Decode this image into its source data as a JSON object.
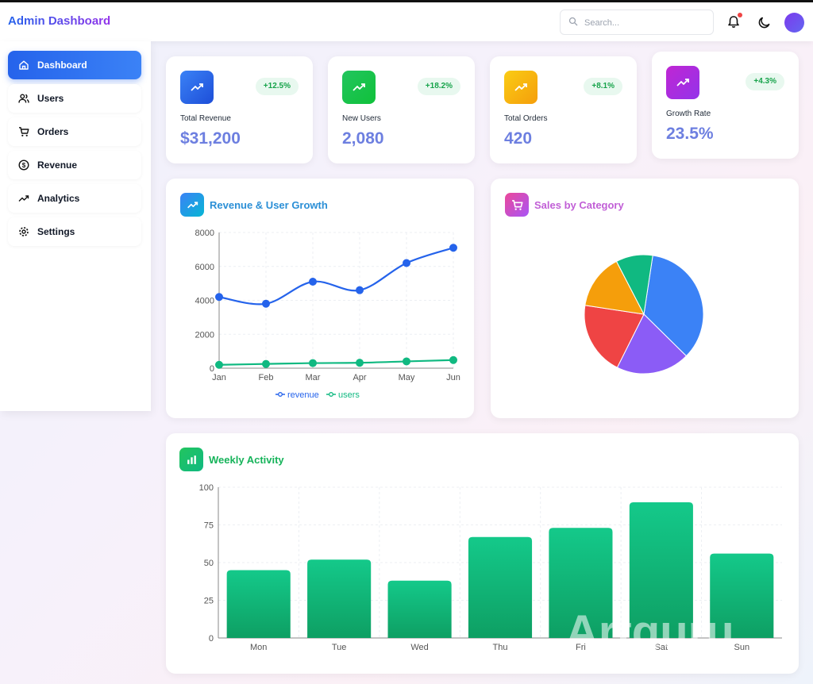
{
  "header": {
    "brand": "Admin Dashboard",
    "search_placeholder": "Search..."
  },
  "sidebar": {
    "items": [
      {
        "label": "Dashboard",
        "icon": "home-icon",
        "active": true
      },
      {
        "label": "Users",
        "icon": "users-icon",
        "active": false
      },
      {
        "label": "Orders",
        "icon": "cart-icon",
        "active": false
      },
      {
        "label": "Revenue",
        "icon": "dollar-icon",
        "active": false
      },
      {
        "label": "Analytics",
        "icon": "trend-icon",
        "active": false
      },
      {
        "label": "Settings",
        "icon": "gear-icon",
        "active": false
      }
    ]
  },
  "stats": [
    {
      "label": "Total Revenue",
      "value": "$31,200",
      "change": "+12.5%",
      "color": "#2563eb"
    },
    {
      "label": "New Users",
      "value": "2,080",
      "change": "+18.2%",
      "color": "#16c93a"
    },
    {
      "label": "Total Orders",
      "value": "420",
      "change": "+8.1%",
      "color": "#f5b50a"
    },
    {
      "label": "Growth Rate",
      "value": "23.5%",
      "change": "+4.3%",
      "color": "#a33df0"
    }
  ],
  "revenue_panel": {
    "title": "Revenue & User Growth"
  },
  "sales_panel": {
    "title": "Sales by Category"
  },
  "weekly_panel": {
    "title": "Weekly Activity"
  },
  "watermark": "Artguru",
  "chart_data": [
    {
      "type": "line",
      "title": "Revenue & User Growth",
      "categories": [
        "Jan",
        "Feb",
        "Mar",
        "Apr",
        "May",
        "Jun"
      ],
      "ylim": [
        0,
        8000
      ],
      "yticks": [
        0,
        2000,
        4000,
        6000,
        8000
      ],
      "grid": true,
      "legend": "bottom",
      "series": [
        {
          "name": "revenue",
          "values": [
            4200,
            3800,
            5100,
            4600,
            6200,
            7100
          ],
          "color": "#2563eb"
        },
        {
          "name": "users",
          "values": [
            200,
            250,
            300,
            320,
            400,
            480
          ],
          "color": "#10b981"
        }
      ]
    },
    {
      "type": "pie",
      "title": "Sales by Category",
      "values": [
        35,
        20,
        20,
        15,
        10
      ],
      "colors": [
        "#3b82f6",
        "#8b5cf6",
        "#ef4444",
        "#f59e0b",
        "#10b981"
      ]
    },
    {
      "type": "bar",
      "title": "Weekly Activity",
      "categories": [
        "Mon",
        "Tue",
        "Wed",
        "Thu",
        "Fri",
        "Sat",
        "Sun"
      ],
      "values": [
        45,
        52,
        38,
        67,
        73,
        90,
        56
      ],
      "ylim": [
        0,
        100
      ],
      "yticks": [
        0,
        25,
        50,
        75,
        100
      ],
      "grid": true,
      "color": "#10b981"
    }
  ]
}
